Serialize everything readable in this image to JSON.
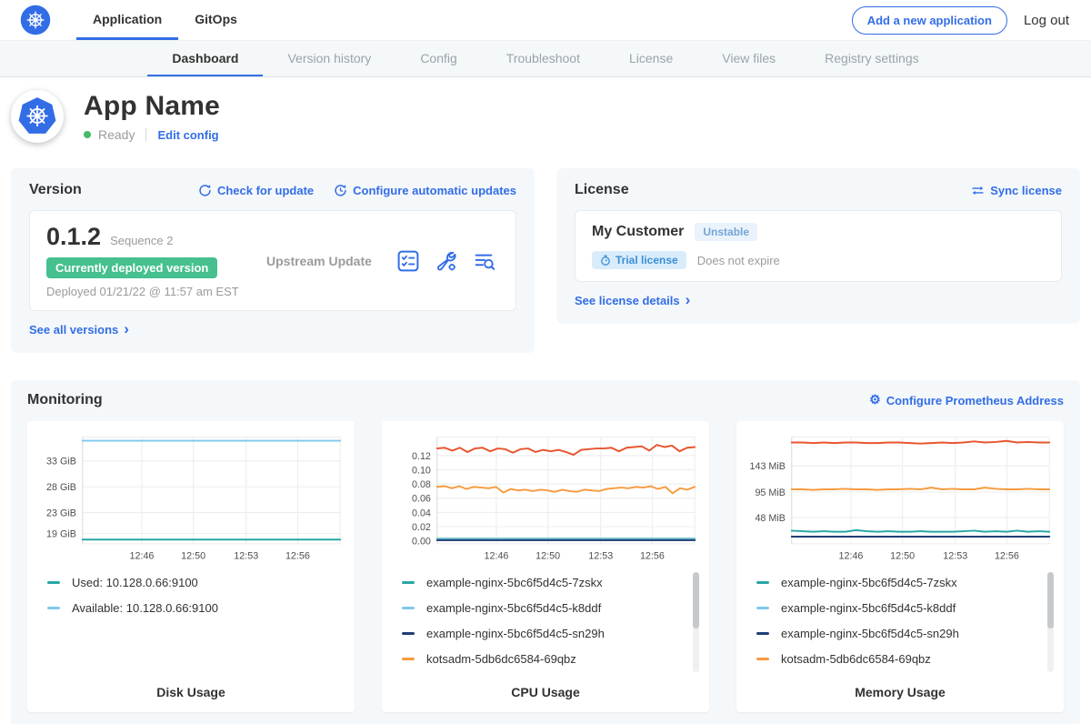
{
  "topnav": {
    "tabs": [
      {
        "label": "Application",
        "active": true
      },
      {
        "label": "GitOps",
        "active": false
      }
    ],
    "add_app_button": "Add a new application",
    "logout_label": "Log out"
  },
  "subnav": {
    "tabs": [
      {
        "label": "Dashboard",
        "active": true
      },
      {
        "label": "Version history",
        "active": false
      },
      {
        "label": "Config",
        "active": false
      },
      {
        "label": "Troubleshoot",
        "active": false
      },
      {
        "label": "License",
        "active": false
      },
      {
        "label": "View files",
        "active": false
      },
      {
        "label": "Registry settings",
        "active": false
      }
    ]
  },
  "app_header": {
    "name": "App Name",
    "status": "Ready",
    "edit_config": "Edit config"
  },
  "version_card": {
    "title": "Version",
    "check_for_update": "Check for update",
    "configure_auto_updates": "Configure automatic updates",
    "version_number": "0.1.2",
    "sequence": "Sequence 2",
    "deployed_badge": "Currently deployed version",
    "deployed_at": "Deployed 01/21/22 @ 11:57 am EST",
    "upstream": "Upstream Update",
    "see_all_versions": "See all versions",
    "chevron": "›",
    "icons": [
      "preflight-checks-icon",
      "config-wrench-icon",
      "deploy-logs-icon"
    ]
  },
  "license_card": {
    "title": "License",
    "sync_license": "Sync license",
    "customer": "My Customer",
    "channel_badge": "Unstable",
    "type_badge": "Trial license",
    "expiry": "Does not expire",
    "see_details": "See license details",
    "chevron": "›"
  },
  "monitoring": {
    "title": "Monitoring",
    "configure_link": "Configure Prometheus Address",
    "gear_glyph": "⚙"
  },
  "colors": {
    "accent_blue": "#326de6",
    "green_badge": "#45c08e",
    "ready_green": "#44bb66",
    "teal": "#2aa5a5",
    "light_blue": "#7ec9e9",
    "navy": "#1f3f77",
    "orange": "#f79b3e",
    "red_orange": "#e8552f"
  },
  "chart_data": [
    {
      "type": "line",
      "title": "Disk Usage",
      "yticks": [
        33,
        28,
        23,
        19
      ],
      "ytick_labels": [
        "33 GiB",
        "28 GiB",
        "23 GiB",
        "19 GiB"
      ],
      "ylim": [
        17.0,
        37.6
      ],
      "xticks": [
        "12:46",
        "12:50",
        "12:53",
        "12:56"
      ],
      "xtick_pos": [
        0.23,
        0.43,
        0.635,
        0.835
      ],
      "series": [
        {
          "name": "Available: 10.128.0.66:9100",
          "color": "#7ec9e9",
          "values": [
            36.9,
            36.9
          ]
        },
        {
          "name": "Used: 10.128.0.66:9100",
          "color": "#2aa5a5",
          "values": [
            17.8,
            17.8
          ]
        }
      ],
      "legend": [
        {
          "label": "Used: 10.128.0.66:9100",
          "color": "#2aa5a5"
        },
        {
          "label": "Available: 10.128.0.66:9100",
          "color": "#7ec9e9"
        }
      ]
    },
    {
      "type": "line",
      "title": "CPU Usage",
      "yticks": [
        0.0,
        0.02,
        0.04,
        0.06,
        0.08,
        0.1,
        0.12
      ],
      "ytick_labels": [
        "0.00",
        "0.02",
        "0.04",
        "0.06",
        "0.08",
        "0.10",
        "0.12"
      ],
      "ylim": [
        -0.004,
        0.146
      ],
      "xticks": [
        "12:46",
        "12:50",
        "12:53",
        "12:56"
      ],
      "xtick_pos": [
        0.23,
        0.43,
        0.635,
        0.835
      ],
      "series": [
        {
          "name": "",
          "color": "#e8552f",
          "values": [
            0.13,
            0.131,
            0.127,
            0.131,
            0.125,
            0.13,
            0.131,
            0.126,
            0.13,
            0.129,
            0.124,
            0.129,
            0.13,
            0.125,
            0.128,
            0.126,
            0.128,
            0.125,
            0.121,
            0.128,
            0.129,
            0.13,
            0.13,
            0.131,
            0.126,
            0.131,
            0.132,
            0.133,
            0.127,
            0.135,
            0.132,
            0.134,
            0.126,
            0.131,
            0.132
          ]
        },
        {
          "name": "kotsadm-5db6dc6584-69qbz",
          "color": "#f79b3e",
          "values": [
            0.076,
            0.077,
            0.074,
            0.077,
            0.073,
            0.076,
            0.075,
            0.074,
            0.076,
            0.068,
            0.073,
            0.071,
            0.072,
            0.07,
            0.072,
            0.071,
            0.069,
            0.072,
            0.07,
            0.069,
            0.072,
            0.071,
            0.07,
            0.073,
            0.074,
            0.075,
            0.074,
            0.076,
            0.075,
            0.077,
            0.073,
            0.076,
            0.067,
            0.074,
            0.072,
            0.076
          ]
        },
        {
          "name": "example-nginx-5bc6f5d4c5-7zskx",
          "color": "#2aa5a5",
          "values": [
            0.003,
            0.003
          ]
        },
        {
          "name": "example-nginx-5bc6f5d4c5-k8ddf",
          "color": "#7ec9e9",
          "values": [
            0.002,
            0.002
          ]
        },
        {
          "name": "example-nginx-5bc6f5d4c5-sn29h",
          "color": "#1f3f77",
          "values": [
            0.001,
            0.001
          ]
        }
      ],
      "legend": [
        {
          "label": "example-nginx-5bc6f5d4c5-7zskx",
          "color": "#2aa5a5"
        },
        {
          "label": "example-nginx-5bc6f5d4c5-k8ddf",
          "color": "#7ec9e9"
        },
        {
          "label": "example-nginx-5bc6f5d4c5-sn29h",
          "color": "#1f3f77"
        },
        {
          "label": "kotsadm-5db6dc6584-69qbz",
          "color": "#f79b3e"
        }
      ]
    },
    {
      "type": "line",
      "title": "Memory Usage",
      "yticks": [
        143,
        95,
        48
      ],
      "ytick_labels": [
        "143 MiB",
        "95 MiB",
        "48 MiB"
      ],
      "ylim": [
        0,
        196
      ],
      "xticks": [
        "12:46",
        "12:50",
        "12:53",
        "12:56"
      ],
      "xtick_pos": [
        0.23,
        0.43,
        0.635,
        0.835
      ],
      "series": [
        {
          "name": "",
          "color": "#e8552f",
          "values": [
            186,
            186,
            185,
            186,
            185,
            186,
            186,
            185,
            185,
            186,
            186,
            185,
            184,
            185,
            186,
            185,
            186,
            188,
            186,
            187,
            189,
            186,
            187,
            186,
            186
          ]
        },
        {
          "name": "kotsadm-5db6dc6584-69qbz",
          "color": "#f79b3e",
          "values": [
            100,
            100,
            99,
            100,
            100,
            101,
            100,
            100,
            99,
            100,
            100,
            101,
            100,
            103,
            100,
            101,
            100,
            100,
            103,
            101,
            100,
            100,
            101,
            100,
            100
          ]
        },
        {
          "name": "example-nginx-5bc6f5d4c5-7zskx",
          "color": "#2aa5a5",
          "values": [
            24,
            23,
            22,
            23,
            22,
            22,
            25,
            23,
            22,
            23,
            22,
            22,
            23,
            22,
            22,
            22,
            23,
            24,
            22,
            23,
            22,
            24,
            22,
            23,
            22
          ]
        },
        {
          "name": "example-nginx-5bc6f5d4c5-sn29h",
          "color": "#1f3f77",
          "values": [
            13,
            13
          ]
        }
      ],
      "legend": [
        {
          "label": "example-nginx-5bc6f5d4c5-7zskx",
          "color": "#2aa5a5"
        },
        {
          "label": "example-nginx-5bc6f5d4c5-k8ddf",
          "color": "#7ec9e9"
        },
        {
          "label": "example-nginx-5bc6f5d4c5-sn29h",
          "color": "#1f3f77"
        },
        {
          "label": "kotsadm-5db6dc6584-69qbz",
          "color": "#f79b3e"
        }
      ]
    }
  ]
}
